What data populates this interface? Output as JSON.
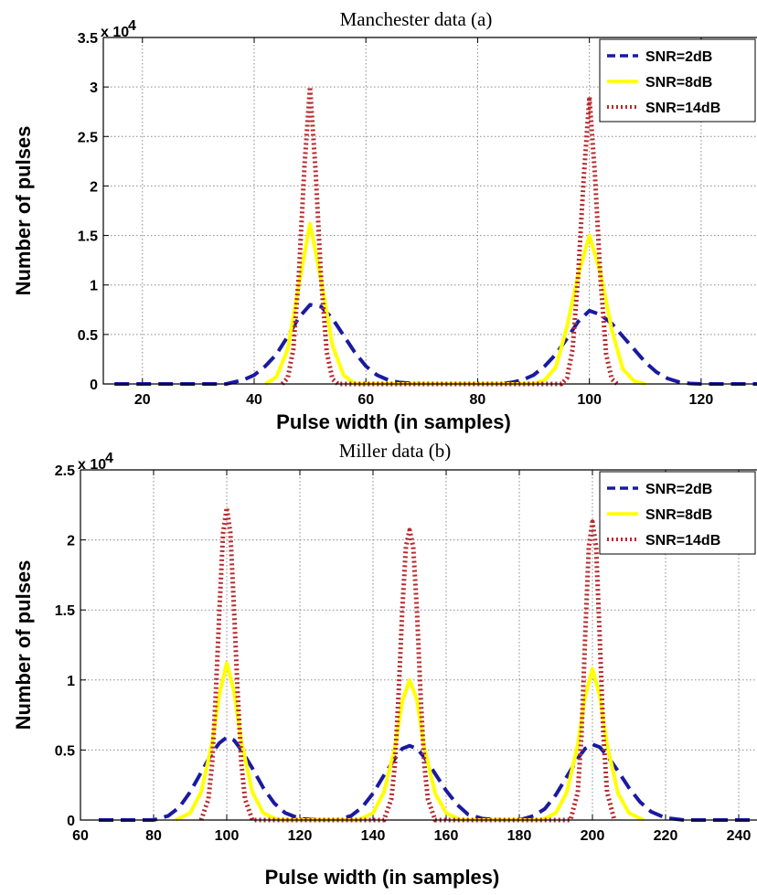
{
  "chart_data": [
    {
      "type": "line",
      "title": "Manchester data (a)",
      "xlabel": "Pulse width (in samples)",
      "ylabel": "Number of pulses",
      "xlim": [
        13,
        130
      ],
      "ylim": [
        0,
        35000
      ],
      "x_ticks": [
        20,
        40,
        60,
        80,
        100,
        120
      ],
      "y_ticks": [
        0,
        5000,
        10000,
        15000,
        20000,
        25000,
        30000,
        35000
      ],
      "y_tick_labels": [
        "0",
        "0.5",
        "1",
        "1.5",
        "2",
        "2.5",
        "3",
        "3.5"
      ],
      "y_multiplier": "x 10",
      "y_exponent": "4",
      "grid": true,
      "legend_position": "top-right",
      "series": [
        {
          "name": "SNR=2dB",
          "color": "#1a1aa0",
          "style": "dashed",
          "x": [
            15,
            20,
            25,
            30,
            35,
            38,
            40,
            42,
            44,
            46,
            48,
            50,
            52,
            54,
            56,
            58,
            60,
            62,
            64,
            66,
            70,
            75,
            80,
            84,
            86,
            88,
            90,
            92,
            94,
            96,
            98,
            100,
            102,
            104,
            106,
            108,
            110,
            112,
            114,
            116,
            118,
            120,
            125,
            130
          ],
          "y": [
            0,
            0,
            0,
            0,
            0,
            400,
            900,
            1800,
            3000,
            4800,
            6700,
            8000,
            7800,
            6600,
            4900,
            3200,
            1800,
            900,
            400,
            150,
            0,
            0,
            0,
            0,
            150,
            400,
            900,
            1800,
            3000,
            4600,
            6300,
            7400,
            7000,
            6100,
            4800,
            3500,
            2200,
            1200,
            550,
            200,
            50,
            0,
            0,
            0
          ]
        },
        {
          "name": "SNR=8dB",
          "color": "#ffff00",
          "style": "solid",
          "x": [
            42,
            44,
            46,
            48,
            50,
            52,
            54,
            56,
            58,
            90,
            92,
            94,
            96,
            98,
            100,
            102,
            104,
            106,
            108,
            110
          ],
          "y": [
            0,
            700,
            3500,
            10000,
            16200,
            10500,
            3900,
            900,
            0,
            0,
            400,
            1700,
            5800,
            11000,
            15000,
            11200,
            5500,
            1500,
            300,
            0
          ]
        },
        {
          "name": "SNR=14dB",
          "color": "#b8282c",
          "style": "dotted",
          "x": [
            45,
            46,
            47,
            48,
            49,
            50,
            51,
            52,
            53,
            54,
            55,
            95,
            96,
            97,
            98,
            99,
            100,
            101,
            102,
            103,
            104,
            105
          ],
          "y": [
            0,
            600,
            3500,
            11000,
            22000,
            30000,
            21500,
            10500,
            3200,
            500,
            0,
            0,
            600,
            3500,
            11000,
            21000,
            29000,
            21000,
            10500,
            3000,
            500,
            0
          ]
        }
      ]
    },
    {
      "type": "line",
      "title": "Miller data (b)",
      "xlabel": "Pulse width (in samples)",
      "ylabel": "Number of pulses",
      "xlim": [
        60,
        245
      ],
      "ylim": [
        0,
        25000
      ],
      "x_ticks": [
        60,
        80,
        100,
        120,
        140,
        160,
        180,
        200,
        220,
        240
      ],
      "y_ticks": [
        0,
        5000,
        10000,
        15000,
        20000,
        25000
      ],
      "y_tick_labels": [
        "0",
        "0.5",
        "1",
        "1.5",
        "2",
        "2.5"
      ],
      "y_multiplier": "x 10",
      "y_exponent": "4",
      "grid": true,
      "legend_position": "top-right",
      "series": [
        {
          "name": "SNR=2dB",
          "color": "#1a1aa0",
          "style": "dashed",
          "x": [
            65,
            70,
            75,
            80,
            84,
            87,
            90,
            93,
            96,
            98,
            100,
            102,
            104,
            107,
            110,
            113,
            116,
            120,
            125,
            130,
            134,
            137,
            140,
            143,
            146,
            148,
            150,
            152,
            154,
            157,
            160,
            163,
            166,
            170,
            175,
            180,
            184,
            187,
            190,
            193,
            196,
            198,
            200,
            202,
            204,
            207,
            210,
            213,
            216,
            220,
            225,
            230,
            235,
            243
          ],
          "y": [
            0,
            0,
            0,
            0,
            300,
            900,
            2000,
            3400,
            4800,
            5500,
            5900,
            5700,
            5000,
            3700,
            2300,
            1200,
            500,
            100,
            0,
            0,
            300,
            900,
            1900,
            3200,
            4400,
            5100,
            5300,
            5100,
            4500,
            3300,
            2100,
            1100,
            400,
            100,
            0,
            0,
            300,
            800,
            1800,
            3100,
            4400,
            5100,
            5400,
            5200,
            4600,
            3500,
            2300,
            1300,
            600,
            150,
            0,
            0,
            0,
            0
          ]
        },
        {
          "name": "SNR=8dB",
          "color": "#ffff00",
          "style": "solid",
          "x": [
            86,
            90,
            93,
            96,
            98,
            100,
            102,
            104,
            107,
            110,
            114,
            136,
            140,
            143,
            146,
            148,
            150,
            152,
            154,
            157,
            160,
            164,
            186,
            190,
            193,
            196,
            198,
            200,
            202,
            204,
            207,
            210,
            214
          ],
          "y": [
            0,
            500,
            2000,
            5500,
            9000,
            11200,
            9200,
            5600,
            2000,
            500,
            0,
            0,
            500,
            2000,
            5200,
            8500,
            10000,
            8600,
            5200,
            1900,
            500,
            0,
            0,
            500,
            2000,
            5400,
            8800,
            10800,
            8900,
            5400,
            1900,
            500,
            0
          ]
        },
        {
          "name": "SNR=14dB",
          "color": "#b8282c",
          "style": "dotted",
          "x": [
            93,
            95,
            96,
            97,
            98,
            99,
            100,
            101,
            102,
            103,
            104,
            105,
            107,
            143,
            145,
            146,
            147,
            148,
            149,
            150,
            151,
            152,
            153,
            154,
            155,
            157,
            194,
            196,
            197,
            198,
            199,
            200,
            201,
            202,
            203,
            204,
            206
          ],
          "y": [
            0,
            1500,
            4000,
            9000,
            15000,
            20500,
            22300,
            20500,
            15000,
            9000,
            4000,
            1500,
            0,
            0,
            1500,
            4000,
            9000,
            15000,
            19500,
            20700,
            19500,
            15000,
            9000,
            4000,
            1500,
            0,
            0,
            2000,
            6000,
            13000,
            19500,
            21300,
            19500,
            13000,
            6000,
            2000,
            0
          ]
        }
      ]
    }
  ]
}
